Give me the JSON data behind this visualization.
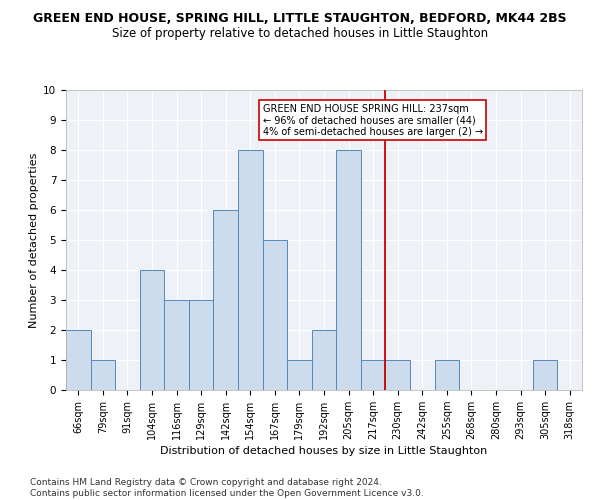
{
  "title": "GREEN END HOUSE, SPRING HILL, LITTLE STAUGHTON, BEDFORD, MK44 2BS",
  "subtitle": "Size of property relative to detached houses in Little Staughton",
  "xlabel": "Distribution of detached houses by size in Little Staughton",
  "ylabel": "Number of detached properties",
  "categories": [
    "66sqm",
    "79sqm",
    "91sqm",
    "104sqm",
    "116sqm",
    "129sqm",
    "142sqm",
    "154sqm",
    "167sqm",
    "179sqm",
    "192sqm",
    "205sqm",
    "217sqm",
    "230sqm",
    "242sqm",
    "255sqm",
    "268sqm",
    "280sqm",
    "293sqm",
    "305sqm",
    "318sqm"
  ],
  "values": [
    2,
    1,
    0,
    4,
    3,
    3,
    6,
    8,
    5,
    1,
    2,
    8,
    1,
    1,
    0,
    1,
    0,
    0,
    0,
    1,
    0
  ],
  "bar_color": "#cddcec",
  "bar_edge_color": "#5588bb",
  "vline_x": 12.5,
  "vline_color": "#cc0000",
  "annotation_text": "GREEN END HOUSE SPRING HILL: 237sqm\n← 96% of detached houses are smaller (44)\n4% of semi-detached houses are larger (2) →",
  "annotation_box_color": "#ffffff",
  "annotation_box_edge": "#cc0000",
  "ylim": [
    0,
    10
  ],
  "yticks": [
    0,
    1,
    2,
    3,
    4,
    5,
    6,
    7,
    8,
    9,
    10
  ],
  "footer": "Contains HM Land Registry data © Crown copyright and database right 2024.\nContains public sector information licensed under the Open Government Licence v3.0.",
  "bg_color": "#eef2f7",
  "title_fontsize": 9,
  "subtitle_fontsize": 8.5,
  "axis_label_fontsize": 8,
  "tick_fontsize": 7,
  "footer_fontsize": 6.5,
  "annotation_fontsize": 7
}
